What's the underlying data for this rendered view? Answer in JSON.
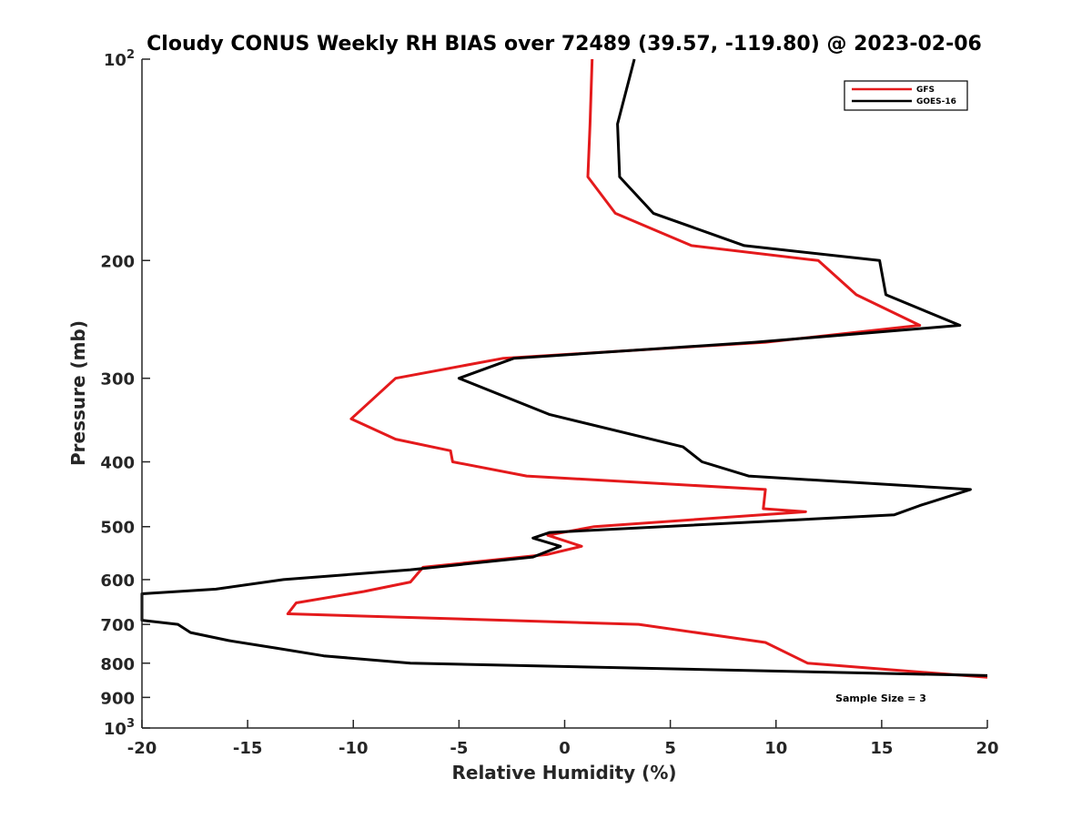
{
  "chart_data": {
    "type": "line",
    "title": "Cloudy CONUS Weekly RH BIAS over 72489 (39.57, -119.80) @ 2023-02-06",
    "xlabel": "Relative Humidity (%)",
    "ylabel": "Pressure (mb)",
    "xlim": [
      -20,
      20
    ],
    "ylim": [
      1000,
      100
    ],
    "yscale": "log",
    "x_ticks": [
      -20,
      -15,
      -10,
      -5,
      0,
      5,
      10,
      15,
      20
    ],
    "x_tick_labels": [
      "-20",
      "-15",
      "-10",
      "-5",
      "0",
      "5",
      "10",
      "15",
      "20"
    ],
    "y_ticks": [
      100,
      200,
      300,
      400,
      500,
      600,
      700,
      800,
      900,
      1000
    ],
    "y_tick_labels": [
      {
        "base": "10",
        "exp": "2"
      },
      {
        "base": "200",
        "exp": ""
      },
      {
        "base": "300",
        "exp": ""
      },
      {
        "base": "400",
        "exp": ""
      },
      {
        "base": "500",
        "exp": ""
      },
      {
        "base": "600",
        "exp": ""
      },
      {
        "base": "700",
        "exp": ""
      },
      {
        "base": "800",
        "exp": ""
      },
      {
        "base": "900",
        "exp": ""
      },
      {
        "base": "10",
        "exp": "3"
      }
    ],
    "grid": false,
    "legend_position": "top-right",
    "annotation": "Sample Size = 3",
    "series": [
      {
        "name": "GFS",
        "color": "#e41a1c",
        "points": [
          [
            1.3,
            100
          ],
          [
            1.2,
            125
          ],
          [
            1.1,
            150
          ],
          [
            2.4,
            170
          ],
          [
            6.0,
            190
          ],
          [
            12.0,
            200
          ],
          [
            13.8,
            225
          ],
          [
            16.8,
            250
          ],
          [
            9.5,
            265
          ],
          [
            -2.9,
            280
          ],
          [
            -8.0,
            300
          ],
          [
            -10.1,
            345
          ],
          [
            -8.0,
            370
          ],
          [
            -5.4,
            385
          ],
          [
            -5.3,
            400
          ],
          [
            -1.8,
            420
          ],
          [
            9.5,
            440
          ],
          [
            9.4,
            470
          ],
          [
            11.4,
            475
          ],
          [
            1.4,
            500
          ],
          [
            -0.8,
            515
          ],
          [
            0.8,
            535
          ],
          [
            -0.8,
            550
          ],
          [
            -6.7,
            575
          ],
          [
            -7.3,
            605
          ],
          [
            -9.5,
            625
          ],
          [
            -12.7,
            650
          ],
          [
            -13.1,
            675
          ],
          [
            3.5,
            700
          ],
          [
            9.5,
            745
          ],
          [
            11.5,
            800
          ],
          [
            20,
            840
          ]
        ]
      },
      {
        "name": "GOES-16",
        "color": "#000000",
        "points": [
          [
            3.3,
            100
          ],
          [
            2.5,
            125
          ],
          [
            2.6,
            150
          ],
          [
            4.2,
            170
          ],
          [
            8.5,
            190
          ],
          [
            14.9,
            200
          ],
          [
            15.2,
            225
          ],
          [
            18.7,
            250
          ],
          [
            9.0,
            265
          ],
          [
            -2.4,
            280
          ],
          [
            -5.0,
            300
          ],
          [
            -0.7,
            340
          ],
          [
            5.6,
            380
          ],
          [
            6.5,
            400
          ],
          [
            8.7,
            420
          ],
          [
            19.2,
            440
          ],
          [
            16.8,
            465
          ],
          [
            15.6,
            480
          ],
          [
            -0.7,
            510
          ],
          [
            -1.5,
            520
          ],
          [
            -0.2,
            535
          ],
          [
            -1.5,
            555
          ],
          [
            -7.3,
            580
          ],
          [
            -13.3,
            600
          ],
          [
            -16.5,
            620
          ],
          [
            -20.0,
            630
          ],
          [
            -20.0,
            690
          ],
          [
            -18.3,
            700
          ],
          [
            -17.7,
            720
          ],
          [
            -15.9,
            740
          ],
          [
            -13.6,
            760
          ],
          [
            -11.4,
            780
          ],
          [
            -7.3,
            800
          ],
          [
            20,
            835
          ]
        ]
      }
    ]
  }
}
